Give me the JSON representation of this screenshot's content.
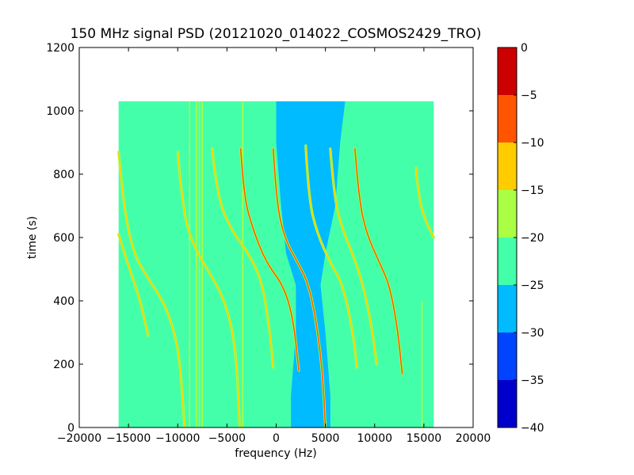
{
  "chart_data": {
    "type": "heatmap",
    "title": "150 MHz signal PSD (20121020_014022_COSMOS2429_TRO)",
    "xlabel": "frequency (Hz)",
    "ylabel": "time (s)",
    "xlim": [
      -20000,
      20000
    ],
    "ylim": [
      0,
      1200
    ],
    "xticks": [
      -20000,
      -15000,
      -10000,
      -5000,
      0,
      5000,
      10000,
      15000,
      20000
    ],
    "xtick_labels": [
      "−20000",
      "−15000",
      "−10000",
      "−5000",
      "0",
      "5000",
      "10000",
      "15000",
      "20000"
    ],
    "yticks": [
      0,
      200,
      400,
      600,
      800,
      1000,
      1200
    ],
    "ytick_labels": [
      "0",
      "200",
      "400",
      "600",
      "800",
      "1000",
      "1200"
    ],
    "data_extent": {
      "x": [
        -16000,
        16000
      ],
      "y": [
        0,
        1030
      ]
    },
    "background_level_range": [
      -25,
      -20
    ],
    "colorbar": {
      "min": -40,
      "max": 0,
      "levels": [
        -40,
        -35,
        -30,
        -25,
        -20,
        -15,
        -10,
        -5,
        0
      ],
      "tick_labels": [
        "−40",
        "−35",
        "−30",
        "−25",
        "−20",
        "−15",
        "−10",
        "−5",
        "0"
      ],
      "colors": [
        "#0000cc",
        "#0044ff",
        "#00bbff",
        "#44ffaa",
        "#aaff44",
        "#ffcc00",
        "#ff5500",
        "#cc0000"
      ]
    },
    "low_power_band": {
      "level_range": [
        -30,
        -25
      ],
      "points": [
        {
          "time": 1030,
          "freq_start": 0,
          "freq_end": 7000
        },
        {
          "time": 900,
          "freq_start": 0,
          "freq_end": 6500
        },
        {
          "time": 700,
          "freq_start": 500,
          "freq_end": 6000
        },
        {
          "time": 550,
          "freq_start": 1000,
          "freq_end": 5000
        },
        {
          "time": 450,
          "freq_start": 2000,
          "freq_end": 4500
        },
        {
          "time": 300,
          "freq_start": 2000,
          "freq_end": 5000
        },
        {
          "time": 100,
          "freq_start": 1500,
          "freq_end": 5500
        },
        {
          "time": 0,
          "freq_start": 1500,
          "freq_end": 5500
        }
      ]
    },
    "vertical_lines": [
      {
        "freq": -8800,
        "time_range": [
          0,
          1030
        ],
        "level_range": [
          -20,
          -15
        ]
      },
      {
        "freq": -8100,
        "time_range": [
          0,
          1030
        ],
        "level_range": [
          -20,
          -15
        ]
      },
      {
        "freq": -7800,
        "time_range": [
          0,
          1030
        ],
        "level_range": [
          -20,
          -15
        ]
      },
      {
        "freq": -7500,
        "time_range": [
          0,
          1030
        ],
        "level_range": [
          -20,
          -15
        ]
      },
      {
        "freq": -3400,
        "time_range": [
          0,
          1030
        ],
        "level_range": [
          -20,
          -15
        ]
      },
      {
        "freq": 14800,
        "time_range": [
          0,
          400
        ],
        "level_range": [
          -20,
          -15
        ]
      }
    ],
    "series": [
      {
        "level_range": [
          -15,
          -10
        ],
        "points": [
          [
            -16000,
            870
          ],
          [
            -15500,
            700
          ],
          [
            -14500,
            550
          ],
          [
            -13000,
            470
          ],
          [
            -11500,
            400
          ],
          [
            -10500,
            320
          ],
          [
            -9800,
            220
          ],
          [
            -9300,
            0
          ]
        ]
      },
      {
        "level_range": [
          -15,
          -10
        ],
        "points": [
          [
            -16000,
            610
          ],
          [
            -15000,
            510
          ],
          [
            -14000,
            420
          ],
          [
            -13500,
            360
          ],
          [
            -13000,
            290
          ]
        ]
      },
      {
        "level_range": [
          -15,
          -10
        ],
        "points": [
          [
            -10000,
            870
          ],
          [
            -9500,
            690
          ],
          [
            -8500,
            580
          ],
          [
            -7000,
            500
          ],
          [
            -5500,
            420
          ],
          [
            -4500,
            320
          ],
          [
            -4000,
            200
          ],
          [
            -3700,
            0
          ]
        ]
      },
      {
        "level_range": [
          -15,
          -10
        ],
        "points": [
          [
            -6500,
            880
          ],
          [
            -6000,
            730
          ],
          [
            -4500,
            620
          ],
          [
            -3000,
            560
          ],
          [
            -1500,
            470
          ],
          [
            -700,
            320
          ],
          [
            -300,
            190
          ]
        ]
      },
      {
        "level_range": [
          -10,
          -5
        ],
        "points": [
          [
            -3600,
            880
          ],
          [
            -3300,
            730
          ],
          [
            -2300,
            620
          ],
          [
            -1000,
            520
          ],
          [
            700,
            450
          ],
          [
            1700,
            350
          ],
          [
            2300,
            180
          ]
        ]
      },
      {
        "level_range": [
          -10,
          -5
        ],
        "points": [
          [
            -300,
            880
          ],
          [
            0,
            720
          ],
          [
            800,
            600
          ],
          [
            2200,
            520
          ],
          [
            3200,
            460
          ],
          [
            4000,
            350
          ],
          [
            4700,
            180
          ],
          [
            5000,
            0
          ]
        ]
      },
      {
        "level_range": [
          -15,
          -10
        ],
        "points": [
          [
            3000,
            890
          ],
          [
            3300,
            720
          ],
          [
            4200,
            610
          ],
          [
            5500,
            520
          ],
          [
            6800,
            450
          ],
          [
            7800,
            300
          ],
          [
            8200,
            190
          ]
        ]
      },
      {
        "level_range": [
          -15,
          -10
        ],
        "points": [
          [
            5500,
            880
          ],
          [
            5900,
            720
          ],
          [
            6800,
            620
          ],
          [
            8000,
            530
          ],
          [
            9000,
            430
          ],
          [
            9800,
            300
          ],
          [
            10200,
            200
          ]
        ]
      },
      {
        "level_range": [
          -10,
          -5
        ],
        "points": [
          [
            8000,
            880
          ],
          [
            8400,
            720
          ],
          [
            9200,
            610
          ],
          [
            10500,
            520
          ],
          [
            11500,
            450
          ],
          [
            12300,
            320
          ],
          [
            12800,
            170
          ]
        ]
      },
      {
        "level_range": [
          -15,
          -10
        ],
        "points": [
          [
            14200,
            820
          ],
          [
            14500,
            720
          ],
          [
            15200,
            650
          ],
          [
            16000,
            600
          ]
        ]
      }
    ]
  }
}
